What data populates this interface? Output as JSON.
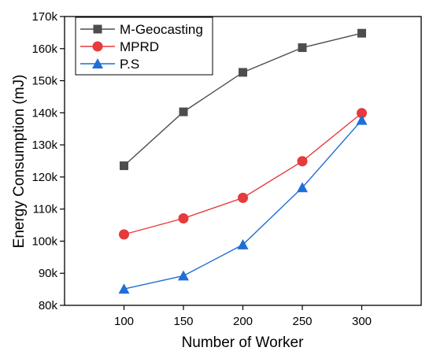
{
  "chart_data": {
    "type": "line",
    "title": "",
    "xlabel": "Number of Worker",
    "ylabel": "Energy Consumption (mJ)",
    "x": [
      100,
      150,
      200,
      250,
      300
    ],
    "x_ticks": [
      100,
      150,
      200,
      250,
      300
    ],
    "x_tick_labels": [
      "100",
      "150",
      "200",
      "250",
      "300"
    ],
    "xlim": [
      50,
      350
    ],
    "ylim": [
      80000,
      170000
    ],
    "y_ticks": [
      80000,
      90000,
      100000,
      110000,
      120000,
      130000,
      140000,
      150000,
      160000,
      170000
    ],
    "y_tick_labels": [
      "80k",
      "90k",
      "100k",
      "110k",
      "120k",
      "130k",
      "140k",
      "150k",
      "160k",
      "170k"
    ],
    "grid": false,
    "legend_position": "top-left",
    "series": [
      {
        "name": "M-Geocasting",
        "marker": "square",
        "color": "#4d4d4d",
        "values": [
          123500,
          140300,
          152600,
          160300,
          164800
        ]
      },
      {
        "name": "MPRD",
        "marker": "circle",
        "color": "#e8393b",
        "values": [
          102100,
          107100,
          113500,
          124900,
          139900
        ]
      },
      {
        "name": "P.S",
        "marker": "triangle",
        "color": "#1f6fd6",
        "values": [
          85100,
          89200,
          98900,
          116700,
          137700
        ]
      }
    ]
  }
}
